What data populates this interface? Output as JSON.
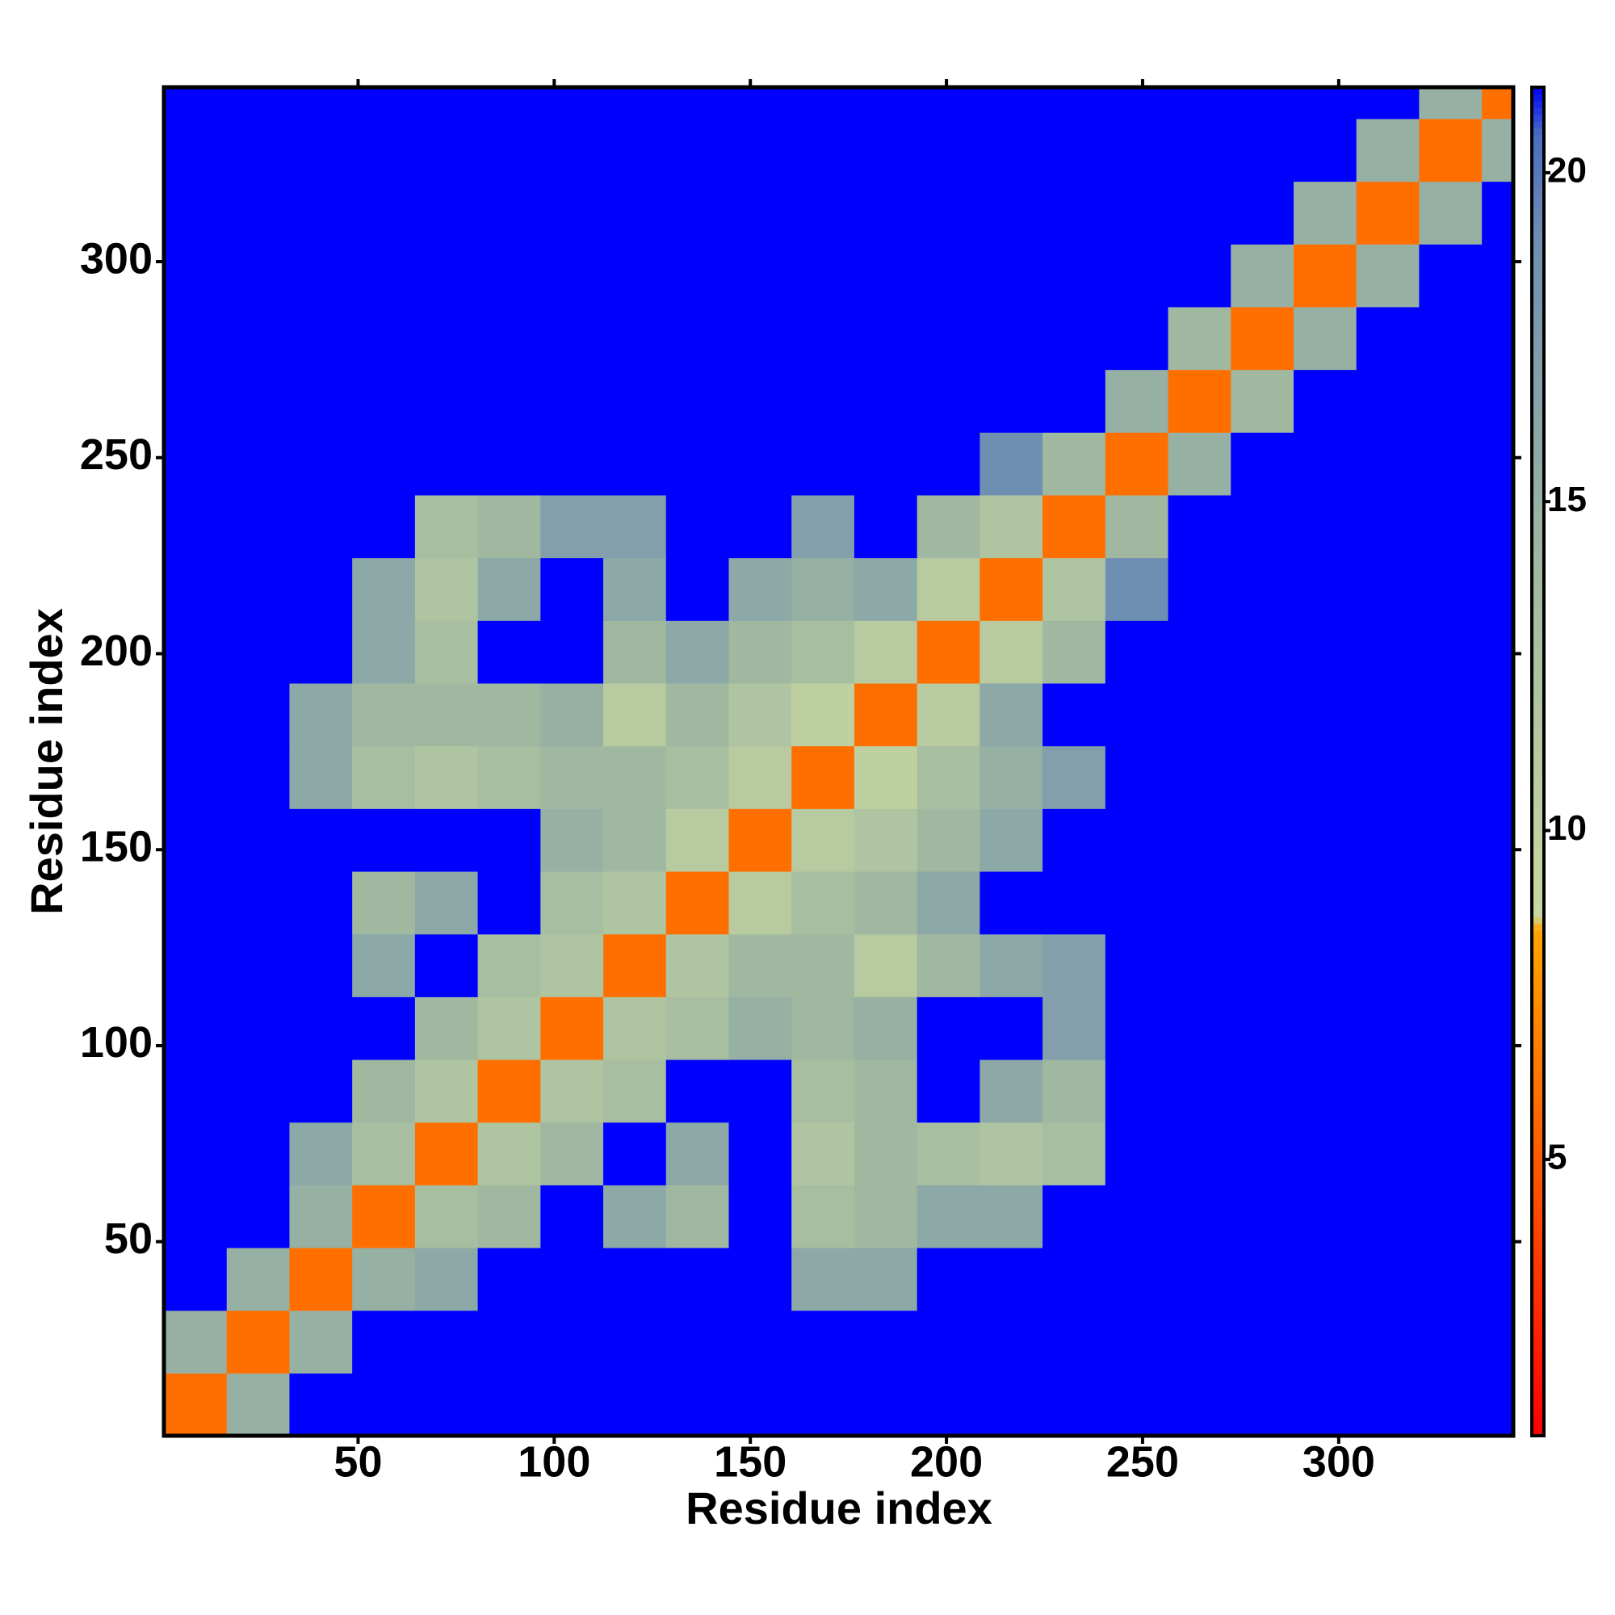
{
  "chart_data": {
    "type": "heatmap",
    "xlabel": "Residue index",
    "ylabel": "Residue index",
    "xlim": [
      0.5,
      344.5
    ],
    "ylim": [
      0.5,
      344.5
    ],
    "xticks": [
      50,
      100,
      150,
      200,
      250,
      300
    ],
    "yticks": [
      50,
      100,
      150,
      200,
      250,
      300
    ],
    "x_edges": [
      0.5,
      16.5,
      32.5,
      48.5,
      64.5,
      80.5,
      96.5,
      112.5,
      128.5,
      144.5,
      160.5,
      176.5,
      192.5,
      208.5,
      224.5,
      240.5,
      256.5,
      272.5,
      288.5,
      304.5,
      320.5,
      336.5,
      344.5
    ],
    "y_edges": [
      0.5,
      16.5,
      32.5,
      48.5,
      64.5,
      80.5,
      96.5,
      112.5,
      128.5,
      144.5,
      160.5,
      176.5,
      192.5,
      208.5,
      224.5,
      240.5,
      256.5,
      272.5,
      288.5,
      304.5,
      320.5,
      336.5,
      344.5
    ],
    "z": [
      [
        6,
        15,
        22,
        22,
        22,
        22,
        22,
        22,
        22,
        22,
        22,
        22,
        22,
        22,
        22,
        22,
        22,
        22,
        22,
        22,
        22,
        22
      ],
      [
        15,
        6,
        15,
        22,
        22,
        22,
        22,
        22,
        22,
        22,
        22,
        22,
        22,
        22,
        22,
        22,
        22,
        22,
        22,
        22,
        22,
        22
      ],
      [
        22,
        15,
        6,
        15,
        16,
        22,
        22,
        22,
        22,
        22,
        16,
        16,
        22,
        22,
        22,
        22,
        22,
        22,
        22,
        22,
        22,
        22
      ],
      [
        22,
        22,
        15,
        6,
        13,
        14,
        22,
        16,
        14,
        22,
        13,
        14,
        16,
        16,
        22,
        22,
        22,
        22,
        22,
        22,
        22,
        22
      ],
      [
        22,
        22,
        16,
        13,
        6,
        12,
        14,
        22,
        16,
        22,
        12,
        14,
        13,
        12,
        13,
        22,
        22,
        22,
        22,
        22,
        22,
        22
      ],
      [
        22,
        22,
        22,
        14,
        12,
        6,
        12,
        13,
        22,
        22,
        13,
        14,
        22,
        16,
        14,
        22,
        22,
        22,
        22,
        22,
        22,
        22
      ],
      [
        22,
        22,
        22,
        22,
        14,
        12,
        6,
        12,
        13,
        15,
        14,
        15,
        22,
        22,
        17,
        22,
        22,
        22,
        22,
        22,
        22,
        22
      ],
      [
        22,
        22,
        22,
        16,
        22,
        13,
        12,
        6,
        12,
        14,
        14,
        11,
        14,
        16,
        17,
        22,
        22,
        22,
        22,
        22,
        22,
        22
      ],
      [
        22,
        22,
        22,
        14,
        16,
        22,
        13,
        12,
        6,
        11,
        13,
        14,
        16,
        22,
        22,
        22,
        22,
        22,
        22,
        22,
        22,
        22
      ],
      [
        22,
        22,
        22,
        22,
        22,
        22,
        15,
        14,
        11,
        6,
        11,
        12,
        14,
        16,
        22,
        22,
        22,
        22,
        22,
        22,
        22,
        22
      ],
      [
        22,
        22,
        16,
        13,
        12,
        13,
        14,
        14,
        13,
        11,
        6,
        10,
        13,
        15,
        17,
        22,
        22,
        22,
        22,
        22,
        22,
        22
      ],
      [
        22,
        22,
        16,
        14,
        14,
        14,
        15,
        11,
        14,
        12,
        10,
        6,
        11,
        16,
        22,
        22,
        22,
        22,
        22,
        22,
        22,
        22
      ],
      [
        22,
        22,
        22,
        16,
        13,
        22,
        22,
        14,
        16,
        14,
        13,
        11,
        6,
        11,
        14,
        22,
        22,
        22,
        22,
        22,
        22,
        22
      ],
      [
        22,
        22,
        22,
        16,
        12,
        16,
        22,
        16,
        22,
        16,
        15,
        16,
        11,
        6,
        12,
        19,
        22,
        22,
        22,
        22,
        22,
        22
      ],
      [
        22,
        22,
        22,
        22,
        13,
        14,
        17,
        17,
        22,
        22,
        17,
        22,
        14,
        12,
        6,
        14,
        22,
        22,
        22,
        22,
        22,
        22
      ],
      [
        22,
        22,
        22,
        22,
        22,
        22,
        22,
        22,
        22,
        22,
        22,
        22,
        22,
        19,
        14,
        6,
        15,
        22,
        22,
        22,
        22,
        22
      ],
      [
        22,
        22,
        22,
        22,
        22,
        22,
        22,
        22,
        22,
        22,
        22,
        22,
        22,
        22,
        22,
        15,
        6,
        14,
        22,
        22,
        22,
        22
      ],
      [
        22,
        22,
        22,
        22,
        22,
        22,
        22,
        22,
        22,
        22,
        22,
        22,
        22,
        22,
        22,
        22,
        14,
        6,
        15,
        22,
        22,
        22
      ],
      [
        22,
        22,
        22,
        22,
        22,
        22,
        22,
        22,
        22,
        22,
        22,
        22,
        22,
        22,
        22,
        22,
        22,
        15,
        6,
        15,
        22,
        22
      ],
      [
        22,
        22,
        22,
        22,
        22,
        22,
        22,
        22,
        22,
        22,
        22,
        22,
        22,
        22,
        22,
        22,
        22,
        22,
        15,
        6,
        15,
        22
      ],
      [
        22,
        22,
        22,
        22,
        22,
        22,
        22,
        22,
        22,
        22,
        22,
        22,
        22,
        22,
        22,
        22,
        22,
        22,
        22,
        15,
        6,
        15
      ],
      [
        22,
        22,
        22,
        22,
        22,
        22,
        22,
        22,
        22,
        22,
        22,
        22,
        22,
        22,
        22,
        22,
        22,
        22,
        22,
        22,
        15,
        6
      ]
    ],
    "colorbar_lim": [
      0.8,
      21.3
    ],
    "colorbar_ticks": [
      5,
      10,
      15,
      20
    ],
    "colorscale": [
      [
        0.8,
        "#ff0000"
      ],
      [
        5,
        "#ff5a00"
      ],
      [
        8.5,
        "#ffa500"
      ],
      [
        8.7,
        "#c9d8a0"
      ],
      [
        14,
        "#a0b8a0"
      ],
      [
        19,
        "#6f8fb2"
      ],
      [
        20.6,
        "#4a6cc0"
      ],
      [
        21.3,
        "#0000ff"
      ]
    ]
  }
}
